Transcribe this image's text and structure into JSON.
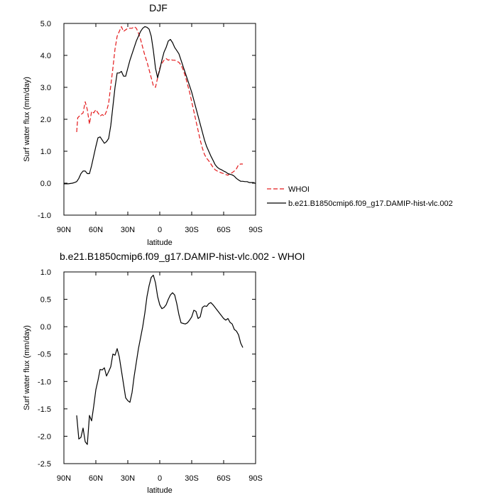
{
  "chart_data": [
    {
      "type": "line",
      "title": "DJF",
      "xlabel": "latitude",
      "ylabel": "Surf water flux (mm/day)",
      "xlim": [
        90,
        -90
      ],
      "ylim": [
        -1.0,
        5.0
      ],
      "x_ticks": [
        90,
        60,
        30,
        0,
        -30,
        -60,
        -90
      ],
      "x_tick_labels": [
        "90N",
        "60N",
        "30N",
        "0",
        "30S",
        "60S",
        "90S"
      ],
      "y_ticks": [
        -1,
        0,
        1,
        2,
        3,
        4,
        5
      ],
      "y_tick_labels": [
        "-1.0",
        "0.0",
        "1.0",
        "2.0",
        "3.0",
        "4.0",
        "5.0"
      ],
      "legend_position": "outside-right",
      "series": [
        {
          "name": "WHOI",
          "color": "#e41a1c",
          "dash": "dashed",
          "x": [
            78,
            77,
            74,
            72,
            70,
            68,
            66,
            64,
            62,
            60,
            58,
            56,
            54,
            52,
            50,
            48,
            46,
            44,
            42,
            40,
            38,
            36,
            34,
            32,
            30,
            28,
            26,
            24,
            22,
            20,
            18,
            16,
            14,
            12,
            10,
            8,
            6,
            4,
            2,
            0,
            -2,
            -4,
            -6,
            -8,
            -10,
            -12,
            -14,
            -16,
            -18,
            -20,
            -22,
            -24,
            -26,
            -28,
            -30,
            -32,
            -34,
            -36,
            -38,
            -40,
            -42,
            -44,
            -46,
            -48,
            -50,
            -52,
            -54,
            -56,
            -58,
            -60,
            -62,
            -64,
            -66,
            -68,
            -70,
            -72,
            -74,
            -76,
            -78
          ],
          "y": [
            1.6,
            2.05,
            2.15,
            2.2,
            2.55,
            2.3,
            1.85,
            2.25,
            2.2,
            2.3,
            2.2,
            2.1,
            2.15,
            2.1,
            2.25,
            2.5,
            3.05,
            3.6,
            4.2,
            4.6,
            4.75,
            4.9,
            4.75,
            4.8,
            4.85,
            4.85,
            4.85,
            4.9,
            4.85,
            4.7,
            4.5,
            4.25,
            4.0,
            3.8,
            3.55,
            3.3,
            3.05,
            3.0,
            3.3,
            3.6,
            3.75,
            3.85,
            3.9,
            3.85,
            3.88,
            3.85,
            3.85,
            3.82,
            3.78,
            3.7,
            3.55,
            3.35,
            3.1,
            2.85,
            2.55,
            2.25,
            1.95,
            1.65,
            1.35,
            1.1,
            0.9,
            0.78,
            0.7,
            0.6,
            0.5,
            0.42,
            0.38,
            0.35,
            0.32,
            0.3,
            0.27,
            0.25,
            0.3,
            0.33,
            0.38,
            0.45,
            0.58,
            0.6,
            0.6
          ]
        },
        {
          "name": "b.e21.B1850cmip6.f09_g17.DAMIP-hist-vlc.002",
          "color": "#000000",
          "dash": "solid",
          "x": [
            90,
            86,
            82,
            80,
            78,
            76,
            74,
            72,
            70,
            68,
            66,
            64,
            62,
            60,
            58,
            56,
            54,
            52,
            50,
            48,
            46,
            44,
            42,
            40,
            38,
            36,
            34,
            32,
            30,
            28,
            26,
            24,
            22,
            20,
            18,
            16,
            14,
            12,
            10,
            8,
            6,
            4,
            2,
            0,
            -2,
            -4,
            -6,
            -8,
            -10,
            -12,
            -14,
            -16,
            -18,
            -20,
            -22,
            -24,
            -26,
            -28,
            -30,
            -32,
            -34,
            -36,
            -38,
            -40,
            -42,
            -44,
            -46,
            -48,
            -50,
            -52,
            -54,
            -56,
            -58,
            -60,
            -62,
            -64,
            -66,
            -68,
            -70,
            -72,
            -74,
            -76,
            -78,
            -80,
            -82,
            -84,
            -86,
            -88,
            -90
          ],
          "y": [
            -0.02,
            -0.02,
            0.0,
            0.02,
            0.05,
            0.15,
            0.3,
            0.38,
            0.38,
            0.3,
            0.3,
            0.55,
            0.85,
            1.15,
            1.42,
            1.45,
            1.35,
            1.25,
            1.3,
            1.4,
            1.8,
            2.4,
            3.0,
            3.45,
            3.45,
            3.5,
            3.35,
            3.35,
            3.6,
            3.85,
            4.05,
            4.25,
            4.45,
            4.6,
            4.75,
            4.85,
            4.9,
            4.88,
            4.82,
            4.6,
            4.15,
            3.6,
            3.3,
            3.55,
            3.85,
            4.1,
            4.25,
            4.45,
            4.5,
            4.4,
            4.25,
            4.15,
            4.05,
            3.85,
            3.65,
            3.45,
            3.25,
            3.05,
            2.85,
            2.6,
            2.35,
            2.1,
            1.85,
            1.6,
            1.35,
            1.15,
            1.0,
            0.85,
            0.72,
            0.58,
            0.5,
            0.45,
            0.42,
            0.38,
            0.35,
            0.3,
            0.28,
            0.26,
            0.22,
            0.15,
            0.1,
            0.06,
            0.06,
            0.05,
            0.05,
            0.02,
            0.02,
            0.02,
            -0.01
          ]
        }
      ]
    },
    {
      "type": "line",
      "title": "b.e21.B1850cmip6.f09_g17.DAMIP-hist-vlc.002 - WHOI",
      "xlabel": "latitude",
      "ylabel": "Surf water flux (mm/day)",
      "xlim": [
        90,
        -90
      ],
      "ylim": [
        -2.5,
        1.0
      ],
      "x_ticks": [
        90,
        60,
        30,
        0,
        -30,
        -60,
        -90
      ],
      "x_tick_labels": [
        "90N",
        "60N",
        "30N",
        "0",
        "30S",
        "60S",
        "90S"
      ],
      "y_ticks": [
        -2.5,
        -2.0,
        -1.5,
        -1.0,
        -0.5,
        0.0,
        0.5,
        1.0
      ],
      "y_tick_labels": [
        "-2.5",
        "-2.0",
        "-1.5",
        "-1.0",
        "-0.5",
        "0.0",
        "0.5",
        "1.0"
      ],
      "series": [
        {
          "color": "#000000",
          "dash": "solid",
          "x": [
            78,
            76,
            74,
            72,
            70,
            68,
            66,
            64,
            62,
            60,
            58,
            56,
            54,
            52,
            50,
            48,
            46,
            44,
            42,
            40,
            38,
            36,
            34,
            32,
            30,
            28,
            26,
            24,
            22,
            20,
            18,
            16,
            14,
            12,
            10,
            8,
            6,
            4,
            2,
            0,
            -2,
            -4,
            -6,
            -8,
            -10,
            -12,
            -14,
            -16,
            -18,
            -20,
            -22,
            -24,
            -26,
            -28,
            -30,
            -32,
            -34,
            -36,
            -38,
            -40,
            -42,
            -44,
            -46,
            -48,
            -50,
            -52,
            -54,
            -56,
            -58,
            -60,
            -62,
            -64,
            -66,
            -68,
            -70,
            -72,
            -74,
            -76,
            -78
          ],
          "y": [
            -1.62,
            -2.05,
            -2.02,
            -1.85,
            -2.1,
            -2.15,
            -1.62,
            -1.72,
            -1.45,
            -1.15,
            -0.98,
            -0.78,
            -0.79,
            -0.75,
            -0.9,
            -0.82,
            -0.73,
            -0.5,
            -0.52,
            -0.4,
            -0.55,
            -0.8,
            -1.05,
            -1.3,
            -1.35,
            -1.38,
            -1.2,
            -0.9,
            -0.65,
            -0.4,
            -0.2,
            0.0,
            0.25,
            0.55,
            0.75,
            0.9,
            0.94,
            0.8,
            0.55,
            0.4,
            0.33,
            0.35,
            0.4,
            0.5,
            0.58,
            0.62,
            0.58,
            0.42,
            0.22,
            0.07,
            0.06,
            0.05,
            0.07,
            0.12,
            0.18,
            0.3,
            0.28,
            0.15,
            0.18,
            0.35,
            0.38,
            0.37,
            0.42,
            0.44,
            0.4,
            0.35,
            0.3,
            0.25,
            0.2,
            0.15,
            0.12,
            0.15,
            0.08,
            0.05,
            -0.05,
            -0.08,
            -0.15,
            -0.3,
            -0.38
          ]
        }
      ]
    }
  ]
}
